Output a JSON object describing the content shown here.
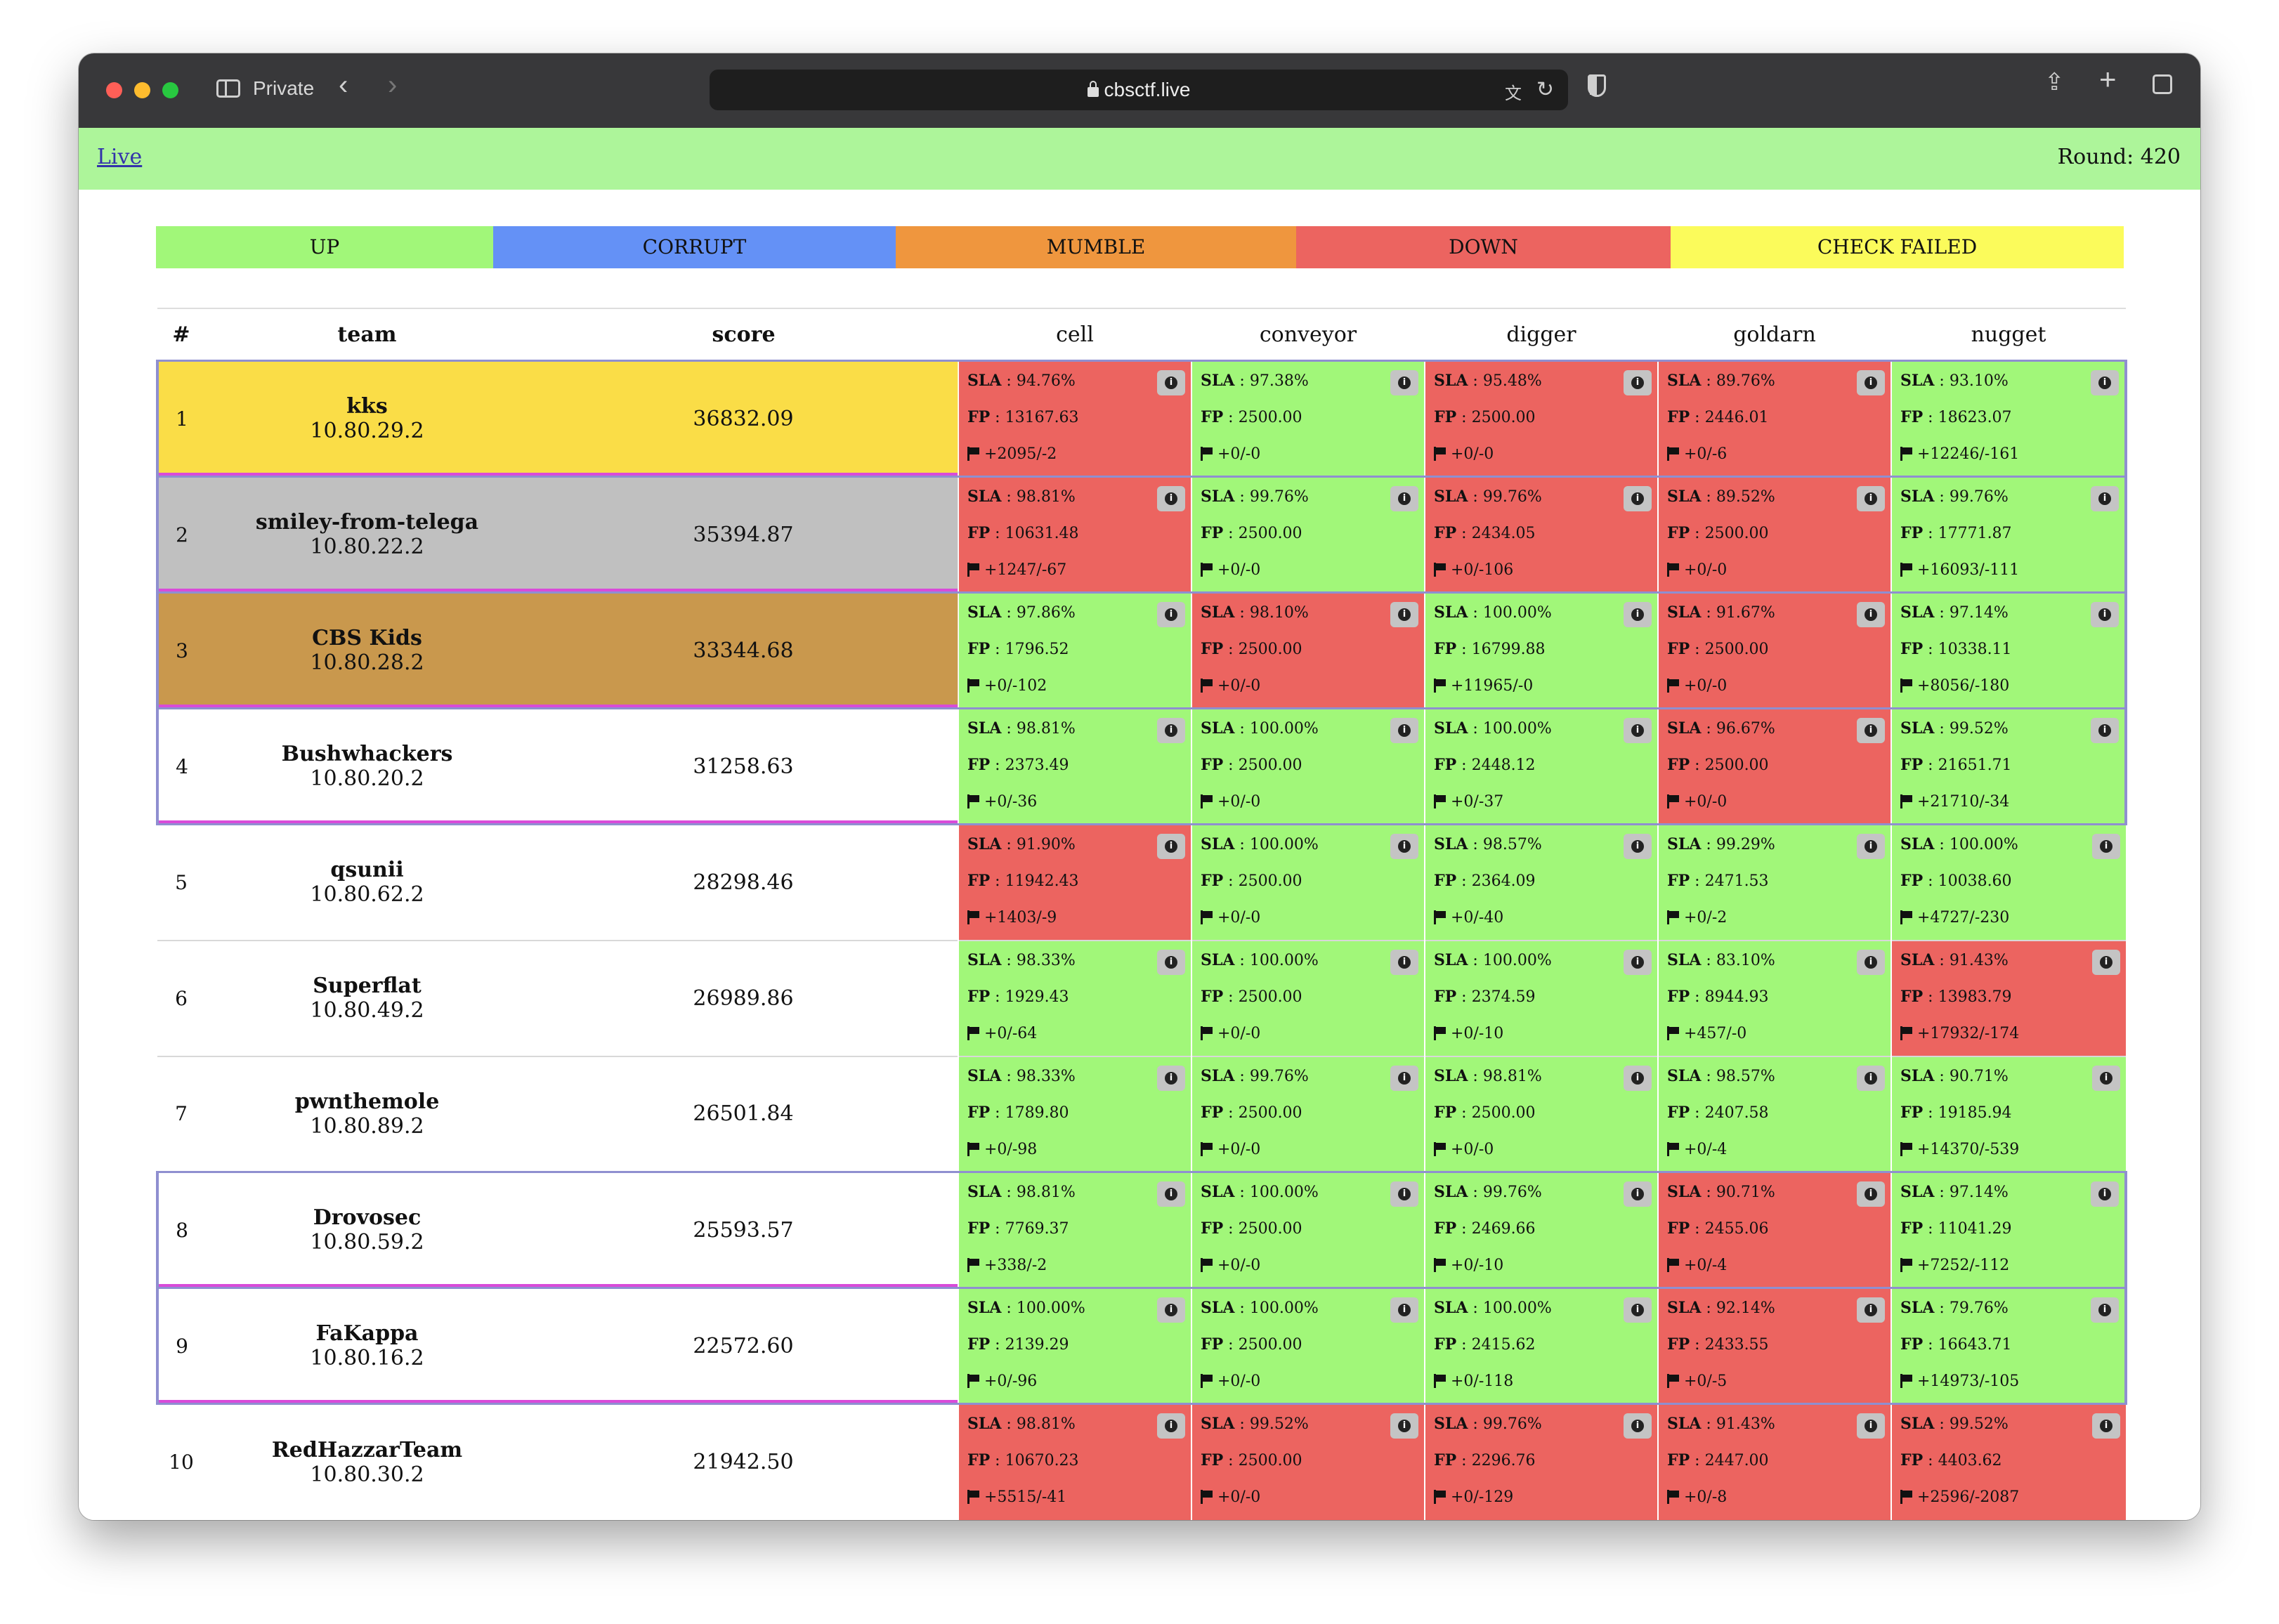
{
  "browser": {
    "private_label": "Private",
    "url": "cbsctf.live"
  },
  "page": {
    "live_link": "Live",
    "round": "Round: 420"
  },
  "legend": [
    {
      "label": "UP",
      "color": "#a1f779"
    },
    {
      "label": "CORRUPT",
      "color": "#6491f6"
    },
    {
      "label": "MUMBLE",
      "color": "#ef963e"
    },
    {
      "label": "DOWN",
      "color": "#ec6460"
    },
    {
      "label": "CHECK FAILED",
      "color": "#fbfb5b"
    }
  ],
  "table": {
    "headers": {
      "num": "#",
      "team": "team",
      "score": "score"
    },
    "services": [
      "cell",
      "conveyor",
      "digger",
      "goldarn",
      "nugget"
    ],
    "labels": {
      "sla": "SLA",
      "fp": "FP"
    },
    "teams": [
      {
        "rank": "1",
        "name": "kks",
        "ip": "10.80.29.2",
        "score": "36832.09",
        "bg": "#fadd47",
        "framed": true,
        "services": [
          {
            "status": "down",
            "sla": "94.76%",
            "fp": "13167.63",
            "flags": "+2095/-2"
          },
          {
            "status": "up",
            "sla": "97.38%",
            "fp": "2500.00",
            "flags": "+0/-0"
          },
          {
            "status": "down",
            "sla": "95.48%",
            "fp": "2500.00",
            "flags": "+0/-0"
          },
          {
            "status": "down",
            "sla": "89.76%",
            "fp": "2446.01",
            "flags": "+0/-6"
          },
          {
            "status": "up",
            "sla": "93.10%",
            "fp": "18623.07",
            "flags": "+12246/-161"
          }
        ]
      },
      {
        "rank": "2",
        "name": "smiley-from-telega",
        "ip": "10.80.22.2",
        "score": "35394.87",
        "bg": "#c0c0c0",
        "framed": true,
        "services": [
          {
            "status": "down",
            "sla": "98.81%",
            "fp": "10631.48",
            "flags": "+1247/-67"
          },
          {
            "status": "up",
            "sla": "99.76%",
            "fp": "2500.00",
            "flags": "+0/-0"
          },
          {
            "status": "down",
            "sla": "99.76%",
            "fp": "2434.05",
            "flags": "+0/-106"
          },
          {
            "status": "down",
            "sla": "89.52%",
            "fp": "2500.00",
            "flags": "+0/-0"
          },
          {
            "status": "up",
            "sla": "99.76%",
            "fp": "17771.87",
            "flags": "+16093/-111"
          }
        ]
      },
      {
        "rank": "3",
        "name": "CBS Kids",
        "ip": "10.80.28.2",
        "score": "33344.68",
        "bg": "#c9984d",
        "framed": true,
        "services": [
          {
            "status": "up",
            "sla": "97.86%",
            "fp": "1796.52",
            "flags": "+0/-102"
          },
          {
            "status": "down",
            "sla": "98.10%",
            "fp": "2500.00",
            "flags": "+0/-0"
          },
          {
            "status": "up",
            "sla": "100.00%",
            "fp": "16799.88",
            "flags": "+11965/-0"
          },
          {
            "status": "down",
            "sla": "91.67%",
            "fp": "2500.00",
            "flags": "+0/-0"
          },
          {
            "status": "up",
            "sla": "97.14%",
            "fp": "10338.11",
            "flags": "+8056/-180"
          }
        ]
      },
      {
        "rank": "4",
        "name": "Bushwhackers",
        "ip": "10.80.20.2",
        "score": "31258.63",
        "bg": "#ffffff",
        "framed": true,
        "services": [
          {
            "status": "up",
            "sla": "98.81%",
            "fp": "2373.49",
            "flags": "+0/-36"
          },
          {
            "status": "up",
            "sla": "100.00%",
            "fp": "2500.00",
            "flags": "+0/-0"
          },
          {
            "status": "up",
            "sla": "100.00%",
            "fp": "2448.12",
            "flags": "+0/-37"
          },
          {
            "status": "down",
            "sla": "96.67%",
            "fp": "2500.00",
            "flags": "+0/-0"
          },
          {
            "status": "up",
            "sla": "99.52%",
            "fp": "21651.71",
            "flags": "+21710/-34"
          }
        ]
      },
      {
        "rank": "5",
        "name": "qsunii",
        "ip": "10.80.62.2",
        "score": "28298.46",
        "bg": "#ffffff",
        "framed": false,
        "services": [
          {
            "status": "down",
            "sla": "91.90%",
            "fp": "11942.43",
            "flags": "+1403/-9"
          },
          {
            "status": "up",
            "sla": "100.00%",
            "fp": "2500.00",
            "flags": "+0/-0"
          },
          {
            "status": "up",
            "sla": "98.57%",
            "fp": "2364.09",
            "flags": "+0/-40"
          },
          {
            "status": "up",
            "sla": "99.29%",
            "fp": "2471.53",
            "flags": "+0/-2"
          },
          {
            "status": "up",
            "sla": "100.00%",
            "fp": "10038.60",
            "flags": "+4727/-230"
          }
        ]
      },
      {
        "rank": "6",
        "name": "Superflat",
        "ip": "10.80.49.2",
        "score": "26989.86",
        "bg": "#ffffff",
        "framed": false,
        "services": [
          {
            "status": "up",
            "sla": "98.33%",
            "fp": "1929.43",
            "flags": "+0/-64"
          },
          {
            "status": "up",
            "sla": "100.00%",
            "fp": "2500.00",
            "flags": "+0/-0"
          },
          {
            "status": "up",
            "sla": "100.00%",
            "fp": "2374.59",
            "flags": "+0/-10"
          },
          {
            "status": "up",
            "sla": "83.10%",
            "fp": "8944.93",
            "flags": "+457/-0"
          },
          {
            "status": "down",
            "sla": "91.43%",
            "fp": "13983.79",
            "flags": "+17932/-174"
          }
        ]
      },
      {
        "rank": "7",
        "name": "pwnthemole",
        "ip": "10.80.89.2",
        "score": "26501.84",
        "bg": "#ffffff",
        "framed": false,
        "services": [
          {
            "status": "up",
            "sla": "98.33%",
            "fp": "1789.80",
            "flags": "+0/-98"
          },
          {
            "status": "up",
            "sla": "99.76%",
            "fp": "2500.00",
            "flags": "+0/-0"
          },
          {
            "status": "up",
            "sla": "98.81%",
            "fp": "2500.00",
            "flags": "+0/-0"
          },
          {
            "status": "up",
            "sla": "98.57%",
            "fp": "2407.58",
            "flags": "+0/-4"
          },
          {
            "status": "up",
            "sla": "90.71%",
            "fp": "19185.94",
            "flags": "+14370/-539"
          }
        ]
      },
      {
        "rank": "8",
        "name": "Drovosec",
        "ip": "10.80.59.2",
        "score": "25593.57",
        "bg": "#ffffff",
        "framed": true,
        "services": [
          {
            "status": "up",
            "sla": "98.81%",
            "fp": "7769.37",
            "flags": "+338/-2"
          },
          {
            "status": "up",
            "sla": "100.00%",
            "fp": "2500.00",
            "flags": "+0/-0"
          },
          {
            "status": "up",
            "sla": "99.76%",
            "fp": "2469.66",
            "flags": "+0/-10"
          },
          {
            "status": "down",
            "sla": "90.71%",
            "fp": "2455.06",
            "flags": "+0/-4"
          },
          {
            "status": "up",
            "sla": "97.14%",
            "fp": "11041.29",
            "flags": "+7252/-112"
          }
        ]
      },
      {
        "rank": "9",
        "name": "FaKappa",
        "ip": "10.80.16.2",
        "score": "22572.60",
        "bg": "#ffffff",
        "framed": true,
        "services": [
          {
            "status": "up",
            "sla": "100.00%",
            "fp": "2139.29",
            "flags": "+0/-96"
          },
          {
            "status": "up",
            "sla": "100.00%",
            "fp": "2500.00",
            "flags": "+0/-0"
          },
          {
            "status": "up",
            "sla": "100.00%",
            "fp": "2415.62",
            "flags": "+0/-118"
          },
          {
            "status": "down",
            "sla": "92.14%",
            "fp": "2433.55",
            "flags": "+0/-5"
          },
          {
            "status": "up",
            "sla": "79.76%",
            "fp": "16643.71",
            "flags": "+14973/-105"
          }
        ]
      },
      {
        "rank": "10",
        "name": "RedHazzarTeam",
        "ip": "10.80.30.2",
        "score": "21942.50",
        "bg": "#ffffff",
        "framed": false,
        "services": [
          {
            "status": "down",
            "sla": "98.81%",
            "fp": "10670.23",
            "flags": "+5515/-41"
          },
          {
            "status": "down",
            "sla": "99.52%",
            "fp": "2500.00",
            "flags": "+0/-0"
          },
          {
            "status": "down",
            "sla": "99.76%",
            "fp": "2296.76",
            "flags": "+0/-129"
          },
          {
            "status": "down",
            "sla": "91.43%",
            "fp": "2447.00",
            "flags": "+0/-8"
          },
          {
            "status": "down",
            "sla": "99.52%",
            "fp": "4403.62",
            "flags": "+2596/-2087"
          }
        ]
      }
    ]
  }
}
